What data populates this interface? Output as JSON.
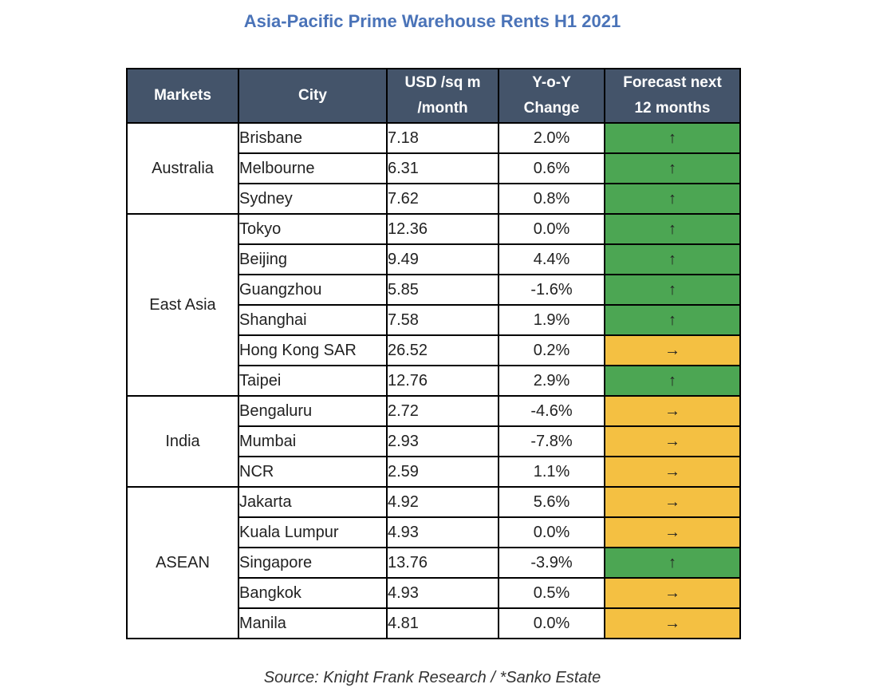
{
  "title": "Asia-Pacific Prime Warehouse Rents H1 2021",
  "source": "Source: Knight Frank Research / *Sanko Estate",
  "colors": {
    "header_bg": "#44546a",
    "title": "#4a73b8",
    "up": "#4ca653",
    "flat": "#f4c042"
  },
  "chart_data": {
    "type": "table",
    "title": "Asia-Pacific Prime Warehouse Rents H1 2021",
    "columns": [
      {
        "label_top": "Markets",
        "label_bottom": ""
      },
      {
        "label_top": "City",
        "label_bottom": ""
      },
      {
        "label_top": "USD /sq m",
        "label_bottom": "/month"
      },
      {
        "label_top": "Y-o-Y",
        "label_bottom": "Change"
      },
      {
        "label_top": "Forecast next",
        "label_bottom": "12 months"
      }
    ],
    "groups": [
      {
        "market": "Australia",
        "rows": [
          {
            "city": "Brisbane",
            "rent": "7.18",
            "yoy": "2.0%",
            "forecast": "↑",
            "trend": "up"
          },
          {
            "city": "Melbourne",
            "rent": "6.31",
            "yoy": "0.6%",
            "forecast": "↑",
            "trend": "up"
          },
          {
            "city": "Sydney",
            "rent": "7.62",
            "yoy": "0.8%",
            "forecast": "↑",
            "trend": "up"
          }
        ]
      },
      {
        "market": "East Asia",
        "rows": [
          {
            "city": "Tokyo",
            "rent": "12.36",
            "yoy": "0.0%",
            "forecast": "↑",
            "trend": "up"
          },
          {
            "city": "Beijing",
            "rent": "9.49",
            "yoy": "4.4%",
            "forecast": "↑",
            "trend": "up"
          },
          {
            "city": "Guangzhou",
            "rent": "5.85",
            "yoy": "-1.6%",
            "forecast": "↑",
            "trend": "up"
          },
          {
            "city": "Shanghai",
            "rent": "7.58",
            "yoy": "1.9%",
            "forecast": "↑",
            "trend": "up"
          },
          {
            "city": "Hong Kong SAR",
            "rent": "26.52",
            "yoy": "0.2%",
            "forecast": "→",
            "trend": "flat"
          },
          {
            "city": "Taipei",
            "rent": "12.76",
            "yoy": "2.9%",
            "forecast": "↑",
            "trend": "up"
          }
        ]
      },
      {
        "market": "India",
        "rows": [
          {
            "city": "Bengaluru",
            "rent": "2.72",
            "yoy": "-4.6%",
            "forecast": "→",
            "trend": "flat"
          },
          {
            "city": "Mumbai",
            "rent": "2.93",
            "yoy": "-7.8%",
            "forecast": "→",
            "trend": "flat"
          },
          {
            "city": "NCR",
            "rent": "2.59",
            "yoy": "1.1%",
            "forecast": "→",
            "trend": "flat"
          }
        ]
      },
      {
        "market": "ASEAN",
        "rows": [
          {
            "city": "Jakarta",
            "rent": "4.92",
            "yoy": "5.6%",
            "forecast": "→",
            "trend": "flat"
          },
          {
            "city": "Kuala Lumpur",
            "rent": "4.93",
            "yoy": "0.0%",
            "forecast": "→",
            "trend": "flat"
          },
          {
            "city": "Singapore",
            "rent": "13.76",
            "yoy": "-3.9%",
            "forecast": "↑",
            "trend": "up"
          },
          {
            "city": "Bangkok",
            "rent": "4.93",
            "yoy": "0.5%",
            "forecast": "→",
            "trend": "flat"
          },
          {
            "city": "Manila",
            "rent": "4.81",
            "yoy": "0.0%",
            "forecast": "→",
            "trend": "flat"
          }
        ]
      }
    ]
  }
}
